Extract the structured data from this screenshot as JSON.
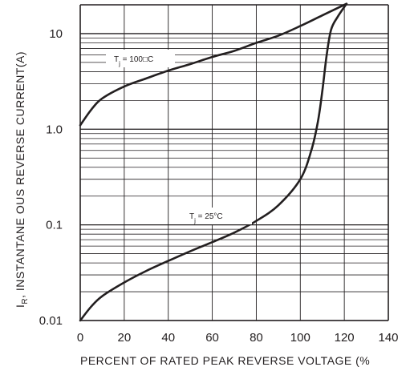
{
  "chart_data": {
    "type": "line",
    "xlabel": "PERCENT OF RATED PEAK  REVERSE VOLTAGE (%",
    "ylabel_sub": "R",
    "ylabel_rest": ", INSTANTANE OUS  REVERSE  CURRENT(A)",
    "ylabel_main": "I",
    "xlim": [
      0,
      140
    ],
    "ylim": [
      0.01,
      20
    ],
    "y_scale": "log",
    "grid": true,
    "x_ticks": [
      "0",
      "20",
      "40",
      "60",
      "80",
      "100",
      "120",
      "140"
    ],
    "y_ticks": [
      {
        "label": "10",
        "value": 10
      },
      {
        "label": "1.0",
        "value": 1
      },
      {
        "label": "0.1",
        "value": 0.1
      },
      {
        "label": "0.01",
        "value": 0.01
      }
    ],
    "series": [
      {
        "name": "Tj = 100C",
        "label_main": "T",
        "label_sub": "j",
        "label_rest": " = 100□C",
        "points": [
          [
            0,
            1.1
          ],
          [
            5,
            1.6
          ],
          [
            10,
            2.1
          ],
          [
            20,
            2.8
          ],
          [
            30,
            3.4
          ],
          [
            40,
            4.1
          ],
          [
            50,
            4.8
          ],
          [
            60,
            5.7
          ],
          [
            70,
            6.6
          ],
          [
            80,
            8.0
          ],
          [
            90,
            9.5
          ],
          [
            100,
            12.0
          ],
          [
            110,
            15.5
          ],
          [
            121,
            20.5
          ]
        ]
      },
      {
        "name": "Tj = 25°C",
        "label_main": "T",
        "label_sub": "j",
        "label_rest": " = 25°C",
        "points": [
          [
            0,
            0.01
          ],
          [
            5,
            0.014
          ],
          [
            10,
            0.018
          ],
          [
            20,
            0.025
          ],
          [
            30,
            0.033
          ],
          [
            40,
            0.042
          ],
          [
            50,
            0.053
          ],
          [
            60,
            0.066
          ],
          [
            70,
            0.083
          ],
          [
            80,
            0.11
          ],
          [
            90,
            0.16
          ],
          [
            100,
            0.3
          ],
          [
            105,
            0.6
          ],
          [
            108,
            1.2
          ],
          [
            110,
            2.5
          ],
          [
            112,
            6.0
          ],
          [
            114,
            11.0
          ],
          [
            117,
            15.0
          ],
          [
            121,
            20.5
          ]
        ]
      }
    ]
  }
}
